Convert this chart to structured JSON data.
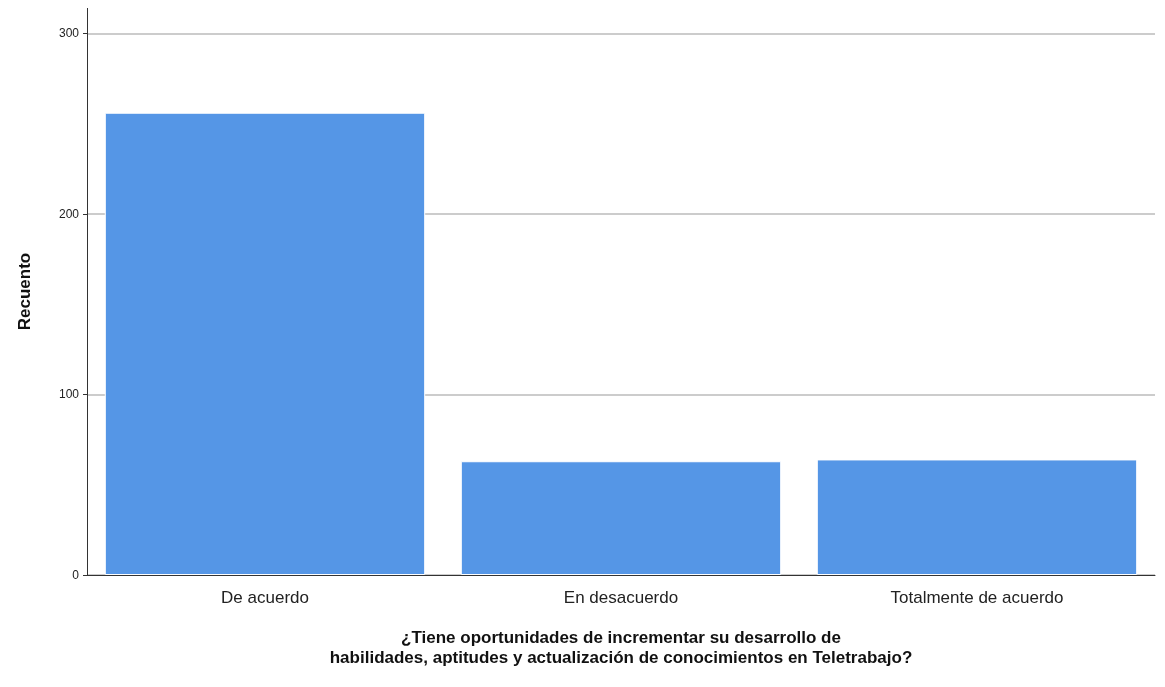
{
  "chart_data": {
    "type": "bar",
    "xlabel": "¿Tiene oportunidades de incrementar su desarrollo de\nhabilidades, aptitudes y actualización de conocimientos en Teletrabajo?",
    "ylabel": "Recuento",
    "categories": [
      "De acuerdo",
      "En desacuerdo",
      "Totalmente de acuerdo"
    ],
    "values": [
      256,
      63,
      64
    ],
    "color": "#5596e6",
    "ylim": [
      0,
      314
    ],
    "yticks": [
      0,
      100,
      200,
      300
    ],
    "grid": "y"
  }
}
